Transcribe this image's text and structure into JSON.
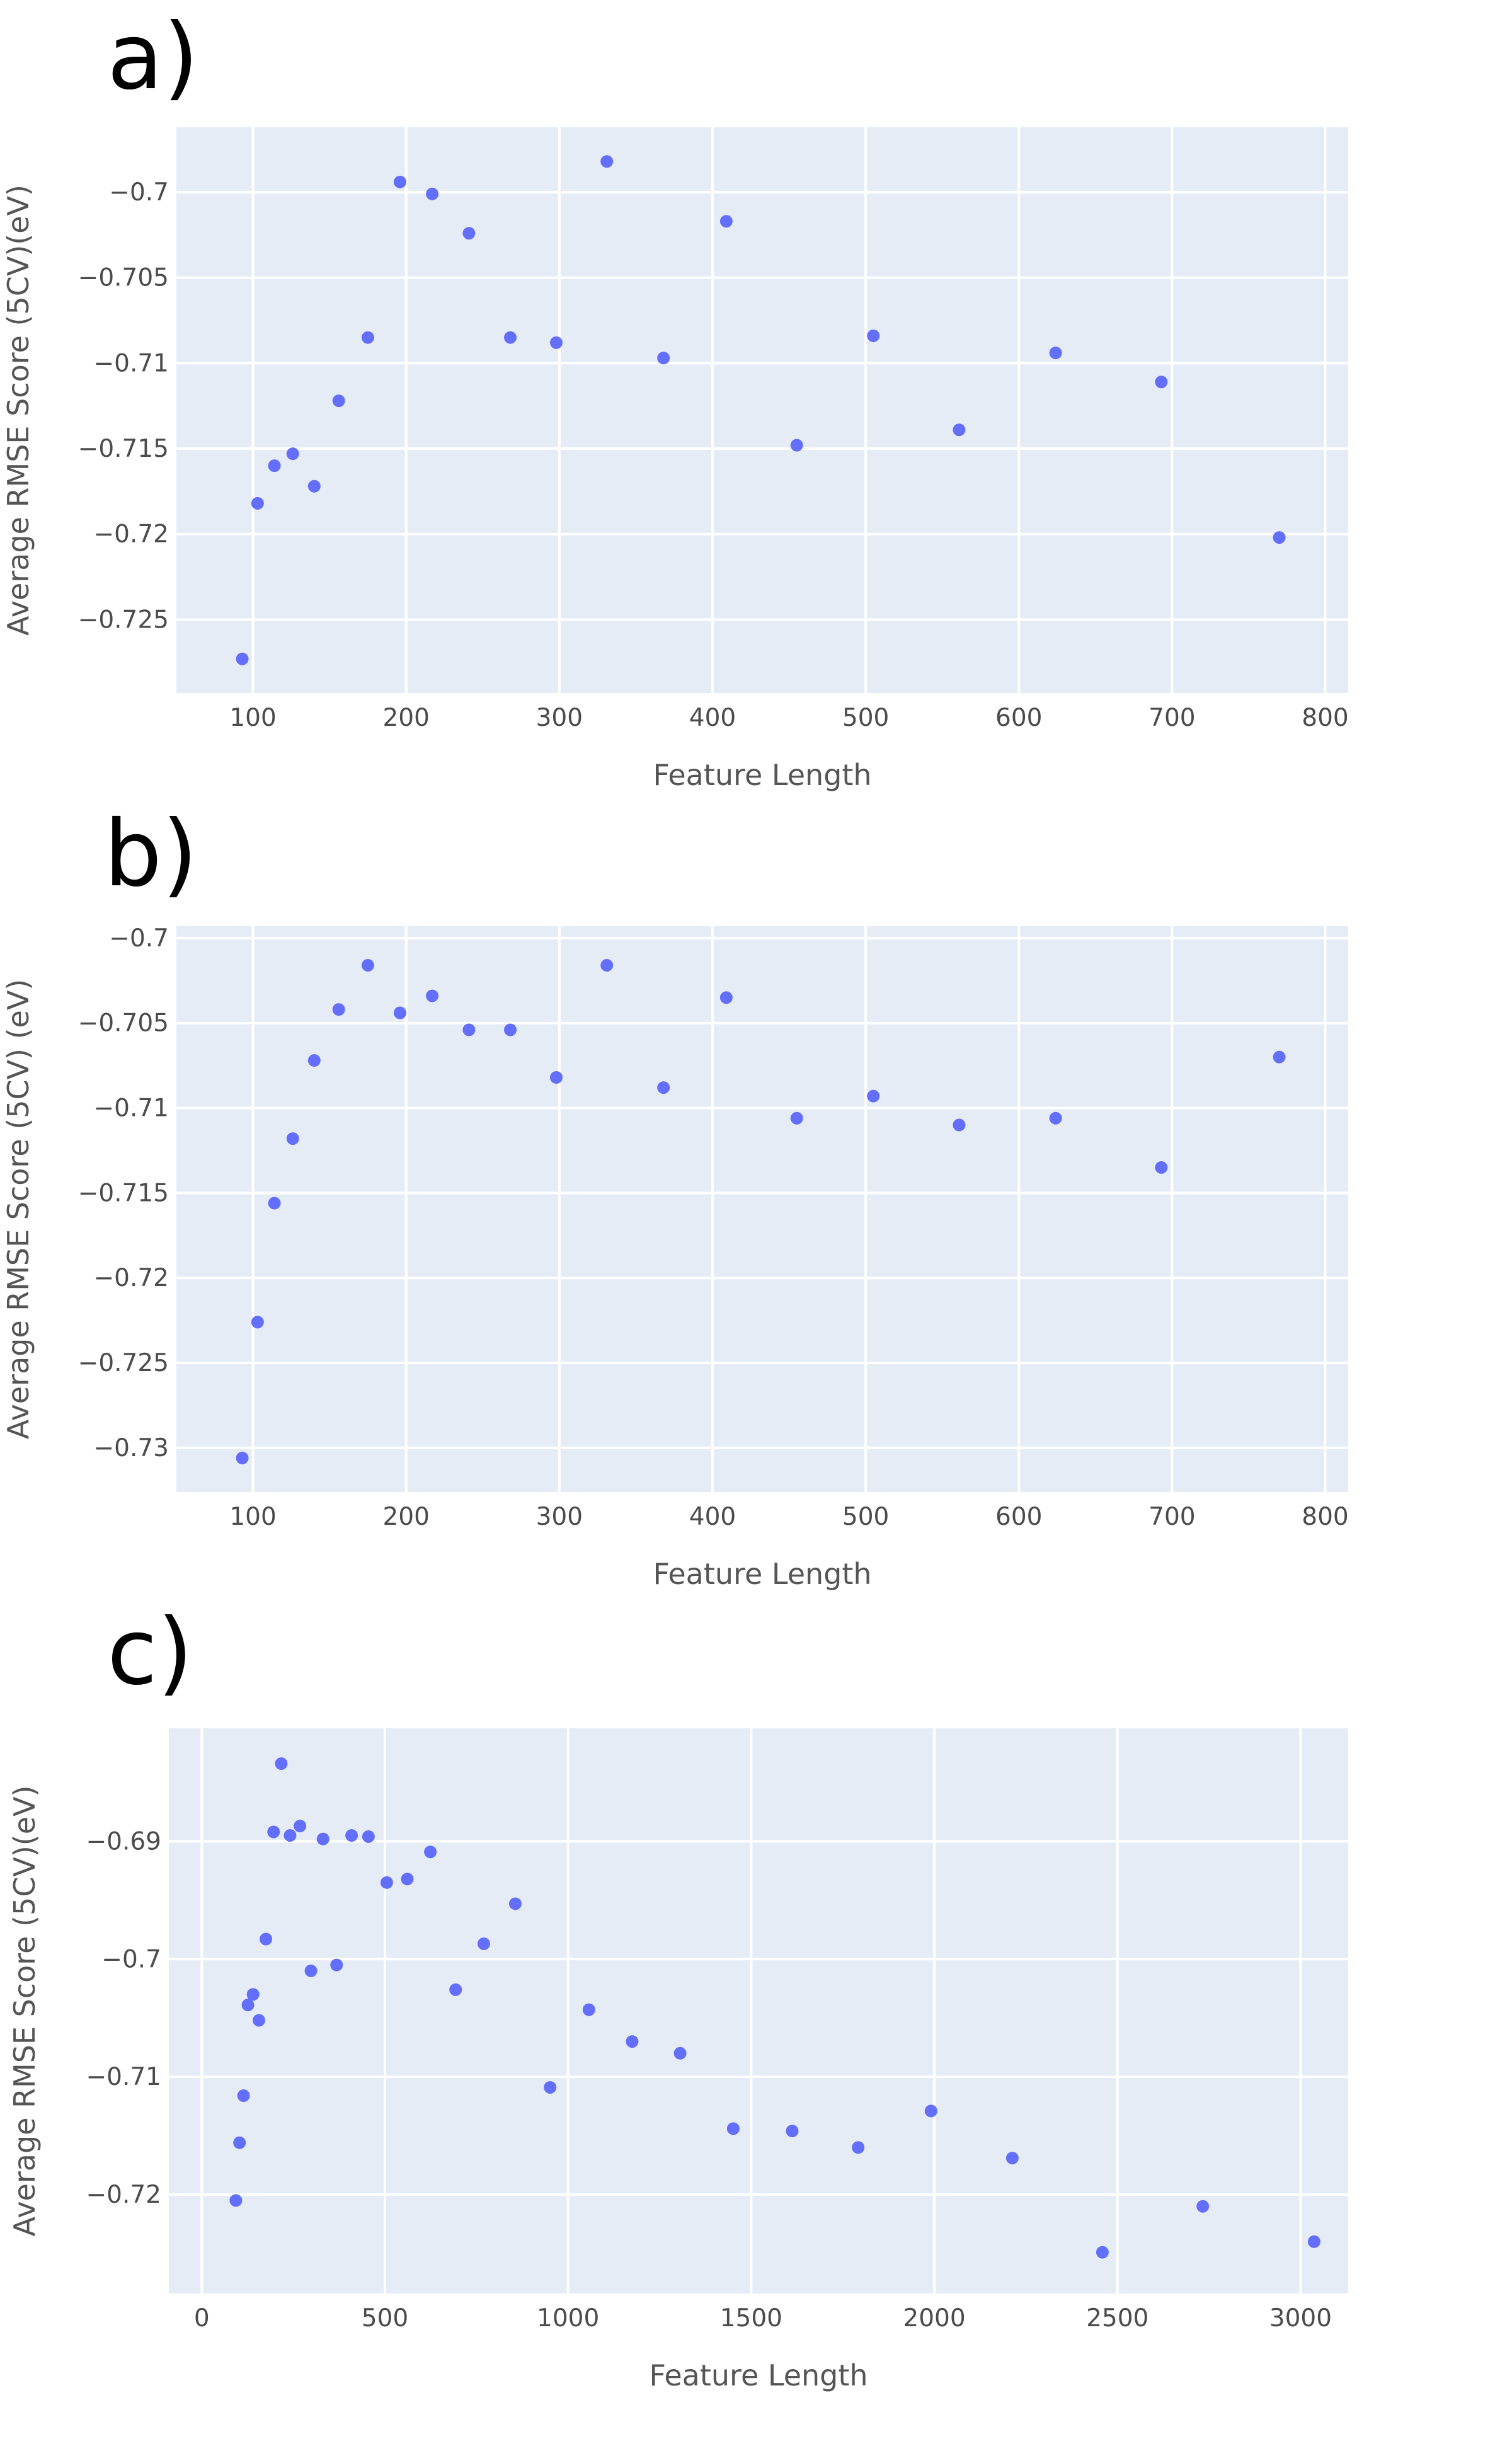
{
  "chart_data": [
    {
      "type": "scatter",
      "panel_label": "a)",
      "xlabel": "Feature Length",
      "ylabel": "Average RMSE Score (5CV)(eV)",
      "xlim": [
        50,
        815
      ],
      "ylim": [
        -0.7293,
        -0.6962
      ],
      "xticks": [
        100,
        200,
        300,
        400,
        500,
        600,
        700,
        800
      ],
      "yticks": [
        -0.7,
        -0.705,
        -0.71,
        -0.715,
        -0.72,
        -0.725
      ],
      "xtick_labels": [
        "100",
        "200",
        "300",
        "400",
        "500",
        "600",
        "700",
        "800"
      ],
      "ytick_labels": [
        "−0.7",
        "−0.705",
        "−0.71",
        "−0.715",
        "−0.72",
        "−0.725"
      ],
      "grid": true,
      "color": "#636efa",
      "x": [
        93,
        103,
        114,
        126,
        140,
        156,
        175,
        196,
        217,
        241,
        268,
        298,
        331,
        368,
        409,
        455,
        505,
        561,
        624,
        693,
        770
      ],
      "y": [
        -0.7273,
        -0.7182,
        -0.716,
        -0.7153,
        -0.7172,
        -0.7122,
        -0.7085,
        -0.6994,
        -0.7001,
        -0.7024,
        -0.7085,
        -0.7088,
        -0.6982,
        -0.7097,
        -0.7017,
        -0.7148,
        -0.7084,
        -0.7139,
        -0.7094,
        -0.7111,
        -0.7202
      ]
    },
    {
      "type": "scatter",
      "panel_label": "b)",
      "xlabel": "Feature Length",
      "ylabel": "Average RMSE Score (5CV) (eV)",
      "xlim": [
        50,
        815
      ],
      "ylim": [
        -0.7326,
        -0.6993
      ],
      "xticks": [
        100,
        200,
        300,
        400,
        500,
        600,
        700,
        800
      ],
      "yticks": [
        -0.7,
        -0.705,
        -0.71,
        -0.715,
        -0.72,
        -0.725,
        -0.73
      ],
      "xtick_labels": [
        "100",
        "200",
        "300",
        "400",
        "500",
        "600",
        "700",
        "800"
      ],
      "ytick_labels": [
        "−0.7",
        "−0.705",
        "−0.71",
        "−0.715",
        "−0.72",
        "−0.725",
        "−0.73"
      ],
      "grid": true,
      "color": "#636efa",
      "x": [
        93,
        103,
        114,
        126,
        140,
        156,
        175,
        196,
        217,
        241,
        268,
        298,
        331,
        368,
        409,
        455,
        505,
        561,
        624,
        693,
        770
      ],
      "y": [
        -0.7306,
        -0.7226,
        -0.7156,
        -0.7118,
        -0.7072,
        -0.7042,
        -0.7016,
        -0.7044,
        -0.7034,
        -0.7054,
        -0.7054,
        -0.7082,
        -0.7016,
        -0.7088,
        -0.7035,
        -0.7106,
        -0.7093,
        -0.711,
        -0.7106,
        -0.7135,
        -0.707
      ]
    },
    {
      "type": "scatter",
      "panel_label": "c)",
      "xlabel": "Feature Length",
      "ylabel": "Average RMSE Score (5CV)(eV)",
      "xlim": [
        -90,
        3130
      ],
      "ylim": [
        -0.7284,
        -0.6804
      ],
      "xticks": [
        0,
        500,
        1000,
        1500,
        2000,
        2500,
        3000
      ],
      "yticks": [
        -0.69,
        -0.7,
        -0.71,
        -0.72
      ],
      "xtick_labels": [
        "0",
        "500",
        "1000",
        "1500",
        "2000",
        "2500",
        "3000"
      ],
      "ytick_labels": [
        "−0.69",
        "−0.7",
        "−0.71",
        "−0.72"
      ],
      "grid": true,
      "color": "#636efa",
      "x": [
        93,
        103,
        114,
        126,
        140,
        156,
        175,
        196,
        217,
        241,
        268,
        298,
        331,
        368,
        409,
        455,
        505,
        561,
        624,
        693,
        770,
        856,
        951,
        1057,
        1175,
        1306,
        1451,
        1612,
        1792,
        1991,
        2213,
        2459,
        2733,
        3037
      ],
      "y": [
        -0.7205,
        -0.7156,
        -0.7116,
        -0.7039,
        -0.703,
        -0.7052,
        -0.6983,
        -0.6892,
        -0.6834,
        -0.6895,
        -0.6887,
        -0.701,
        -0.6898,
        -0.7005,
        -0.6895,
        -0.6896,
        -0.6935,
        -0.6932,
        -0.6909,
        -0.7026,
        -0.6987,
        -0.6953,
        -0.7109,
        -0.7043,
        -0.707,
        -0.708,
        -0.7144,
        -0.7146,
        -0.716,
        -0.7129,
        -0.7169,
        -0.7249,
        -0.721,
        -0.724
      ]
    }
  ]
}
